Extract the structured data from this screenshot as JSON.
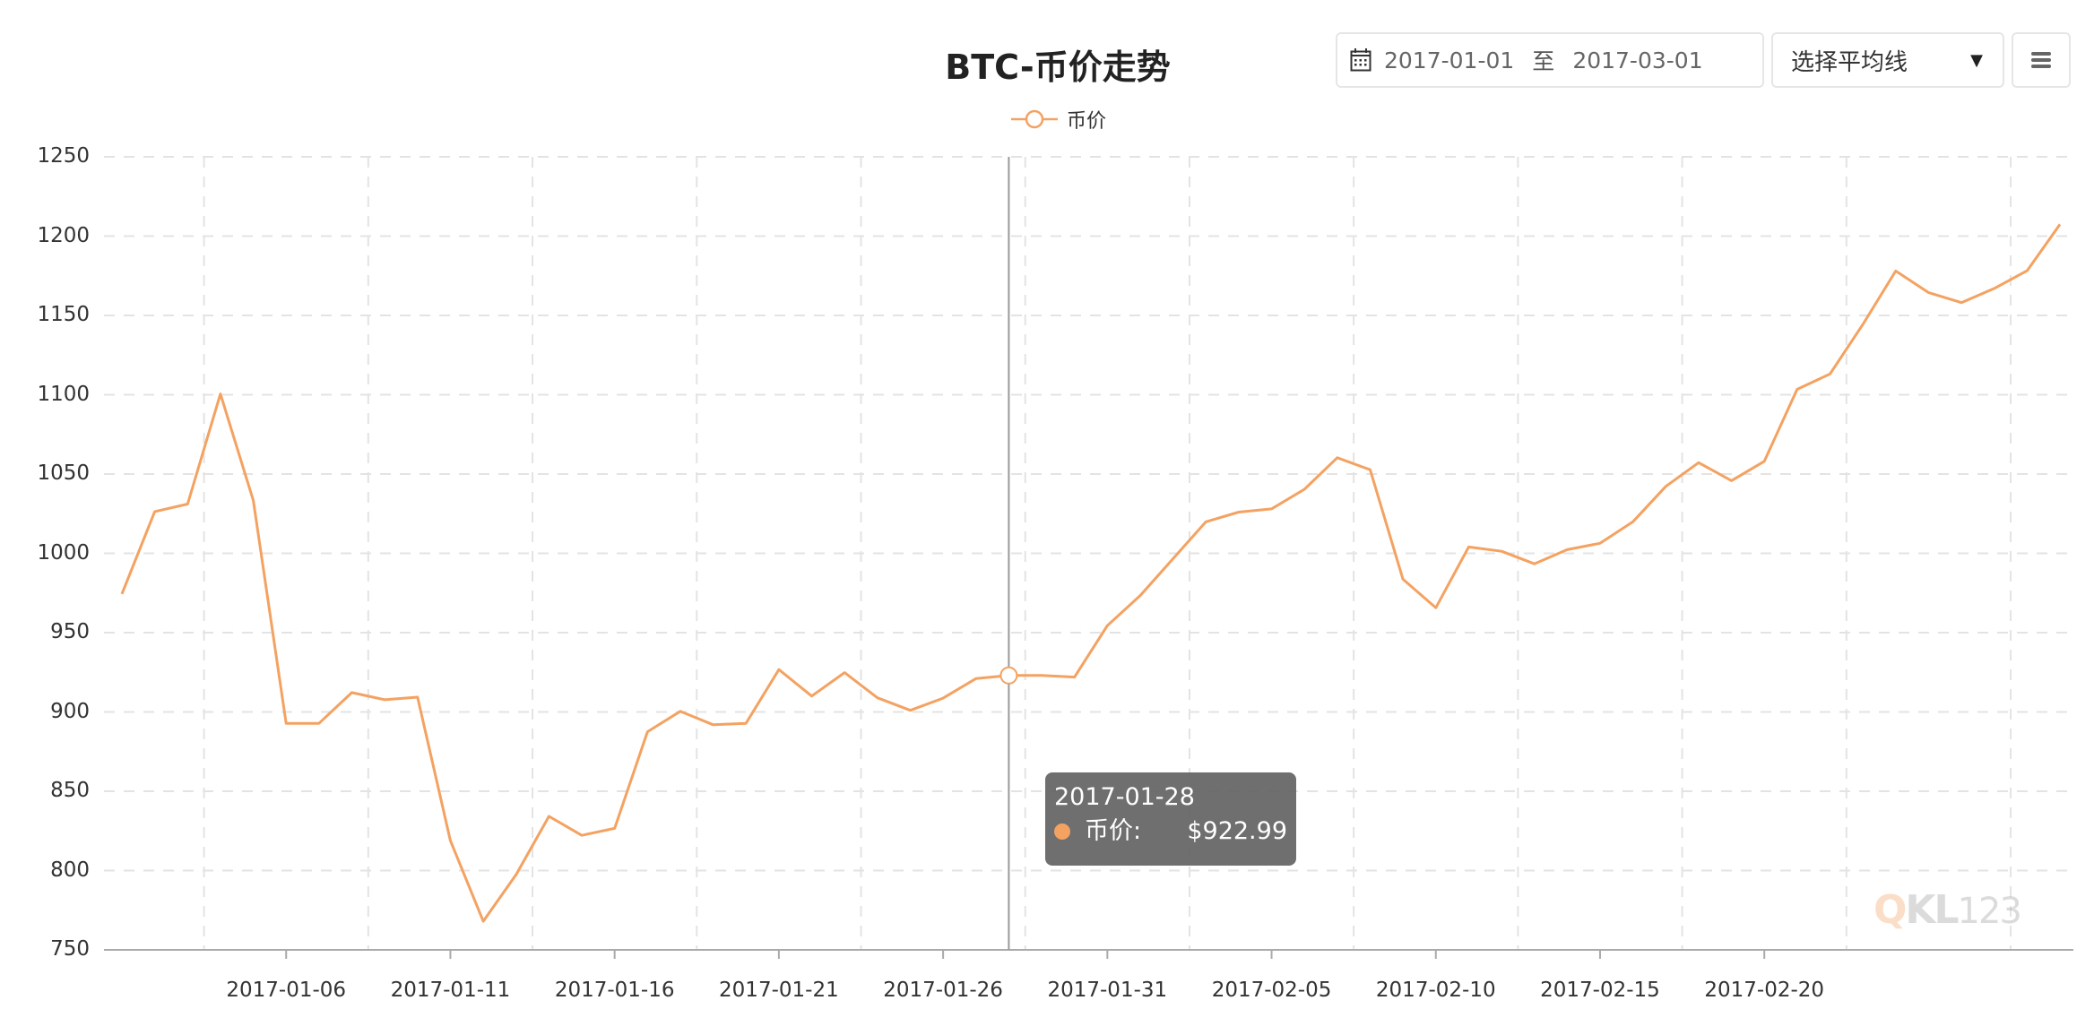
{
  "header": {
    "title": "BTC-币价走势",
    "date_range": {
      "start": "2017-01-01",
      "separator": "至",
      "end": "2017-03-01",
      "icon": "calendar-icon"
    },
    "moving_average_select": {
      "label": "选择平均线",
      "icon": "caret-down-icon"
    },
    "menu_button": {
      "icon": "hamburger-menu-icon"
    }
  },
  "legend": {
    "label": "币价",
    "icon": "line-circle-marker-icon"
  },
  "tooltip": {
    "date": "2017-01-28",
    "series_label": "币价:",
    "value": "$922.99",
    "dot_color": "#f4a261"
  },
  "watermark": {
    "q": "Q",
    "kl": "KL",
    "num": "123"
  },
  "colors": {
    "line": "#f4a261",
    "grid": "#e3e3e3",
    "axis": "#aaaaaa",
    "crosshair": "#999999",
    "tooltip_bg": "#646464"
  },
  "chart_data": {
    "type": "line",
    "title": "BTC-币价走势",
    "xlabel": "",
    "ylabel": "",
    "ylim": [
      750,
      1250
    ],
    "yticks": [
      750,
      800,
      850,
      900,
      950,
      1000,
      1050,
      1100,
      1150,
      1200,
      1250
    ],
    "xtick_labels": [
      "2017-01-06",
      "2017-01-11",
      "2017-01-16",
      "2017-01-21",
      "2017-01-26",
      "2017-01-31",
      "2017-02-05",
      "2017-02-10",
      "2017-02-15",
      "2017-02-20"
    ],
    "xtick_indices": [
      5,
      10,
      15,
      20,
      25,
      30,
      35,
      40,
      45,
      50
    ],
    "grid": true,
    "legend_position": "top-center",
    "highlighted_index": 27,
    "x": [
      "2017-01-01",
      "2017-01-02",
      "2017-01-03",
      "2017-01-04",
      "2017-01-05",
      "2017-01-06",
      "2017-01-07",
      "2017-01-08",
      "2017-01-09",
      "2017-01-10",
      "2017-01-11",
      "2017-01-12",
      "2017-01-13",
      "2017-01-14",
      "2017-01-15",
      "2017-01-16",
      "2017-01-17",
      "2017-01-18",
      "2017-01-19",
      "2017-01-20",
      "2017-01-21",
      "2017-01-22",
      "2017-01-23",
      "2017-01-24",
      "2017-01-25",
      "2017-01-26",
      "2017-01-27",
      "2017-01-28",
      "2017-01-29",
      "2017-01-30",
      "2017-01-31",
      "2017-02-01",
      "2017-02-02",
      "2017-02-03",
      "2017-02-04",
      "2017-02-05",
      "2017-02-06",
      "2017-02-07",
      "2017-02-08",
      "2017-02-09",
      "2017-02-10",
      "2017-02-11",
      "2017-02-12",
      "2017-02-13",
      "2017-02-14",
      "2017-02-15",
      "2017-02-16",
      "2017-02-17",
      "2017-02-18",
      "2017-02-19",
      "2017-02-20",
      "2017-02-21",
      "2017-02-22",
      "2017-02-23",
      "2017-02-24",
      "2017-02-25",
      "2017-02-26",
      "2017-02-27",
      "2017-02-28",
      "2017-03-01"
    ],
    "series": [
      {
        "name": "币价",
        "values": [
          974.4,
          1026.3,
          1031.1,
          1100.5,
          1033.3,
          892.8,
          892.8,
          912.2,
          907.7,
          909.3,
          818.9,
          768.0,
          797.4,
          834.2,
          822.2,
          826.6,
          887.5,
          900.4,
          891.9,
          892.8,
          926.7,
          910.0,
          924.8,
          908.9,
          901.0,
          908.7,
          921.0,
          922.99,
          923.0,
          922.0,
          954.4,
          973.4,
          996.6,
          1019.9,
          1026.0,
          1028.0,
          1040.4,
          1060.3,
          1052.7,
          983.7,
          965.7,
          1004.0,
          1001.3,
          993.4,
          1002.3,
          1006.3,
          1019.9,
          1042.2,
          1057.2,
          1045.8,
          1058.0,
          1103.4,
          1113.1,
          1144.3,
          1178.0,
          1164.4,
          1158.1,
          1167.0,
          1178.2,
          1207.4
        ]
      }
    ]
  }
}
